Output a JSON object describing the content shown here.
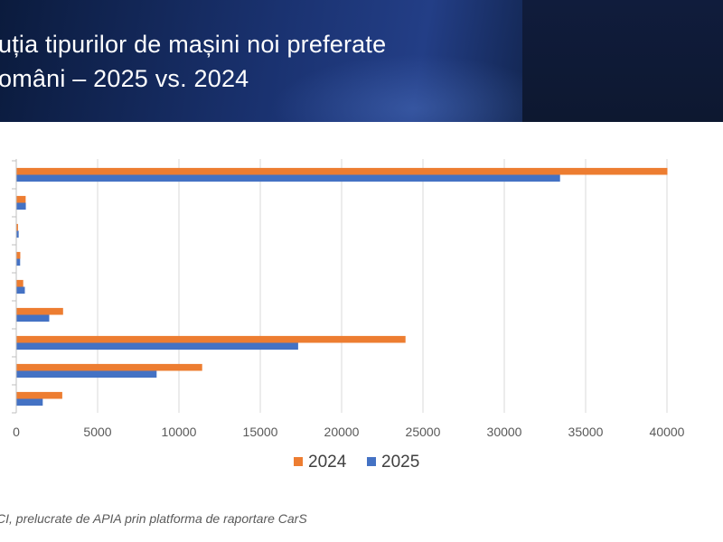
{
  "header": {
    "title_line1": "uția tipurilor de mașini noi preferate",
    "title_line2": "omâni – 2025 vs. 2024"
  },
  "source_note": "CI, prelucrate de APIA prin platforma de raportare CarS",
  "colors": {
    "series_2024": "#ed7d31",
    "series_2025": "#4472c4",
    "gridline": "#d9d9d9",
    "axis": "#bfbfbf"
  },
  "chart_data": {
    "type": "bar",
    "orientation": "horizontal",
    "title": "",
    "xlabel": "",
    "ylabel": "",
    "xlim": [
      0,
      40000
    ],
    "x_ticks": [
      "0",
      "5000",
      "10000",
      "15000",
      "20000",
      "25000",
      "30000",
      "35000",
      "40000"
    ],
    "grid": true,
    "legend_position": "bottom",
    "categories": [
      "",
      "",
      "",
      "",
      "",
      "",
      "",
      "",
      ""
    ],
    "series": [
      {
        "name": "2024",
        "values": [
          40000,
          550,
          80,
          220,
          400,
          2850,
          23900,
          11400,
          2800
        ]
      },
      {
        "name": "2025",
        "values": [
          33400,
          560,
          120,
          210,
          500,
          2000,
          17300,
          8600,
          1600
        ]
      }
    ]
  }
}
